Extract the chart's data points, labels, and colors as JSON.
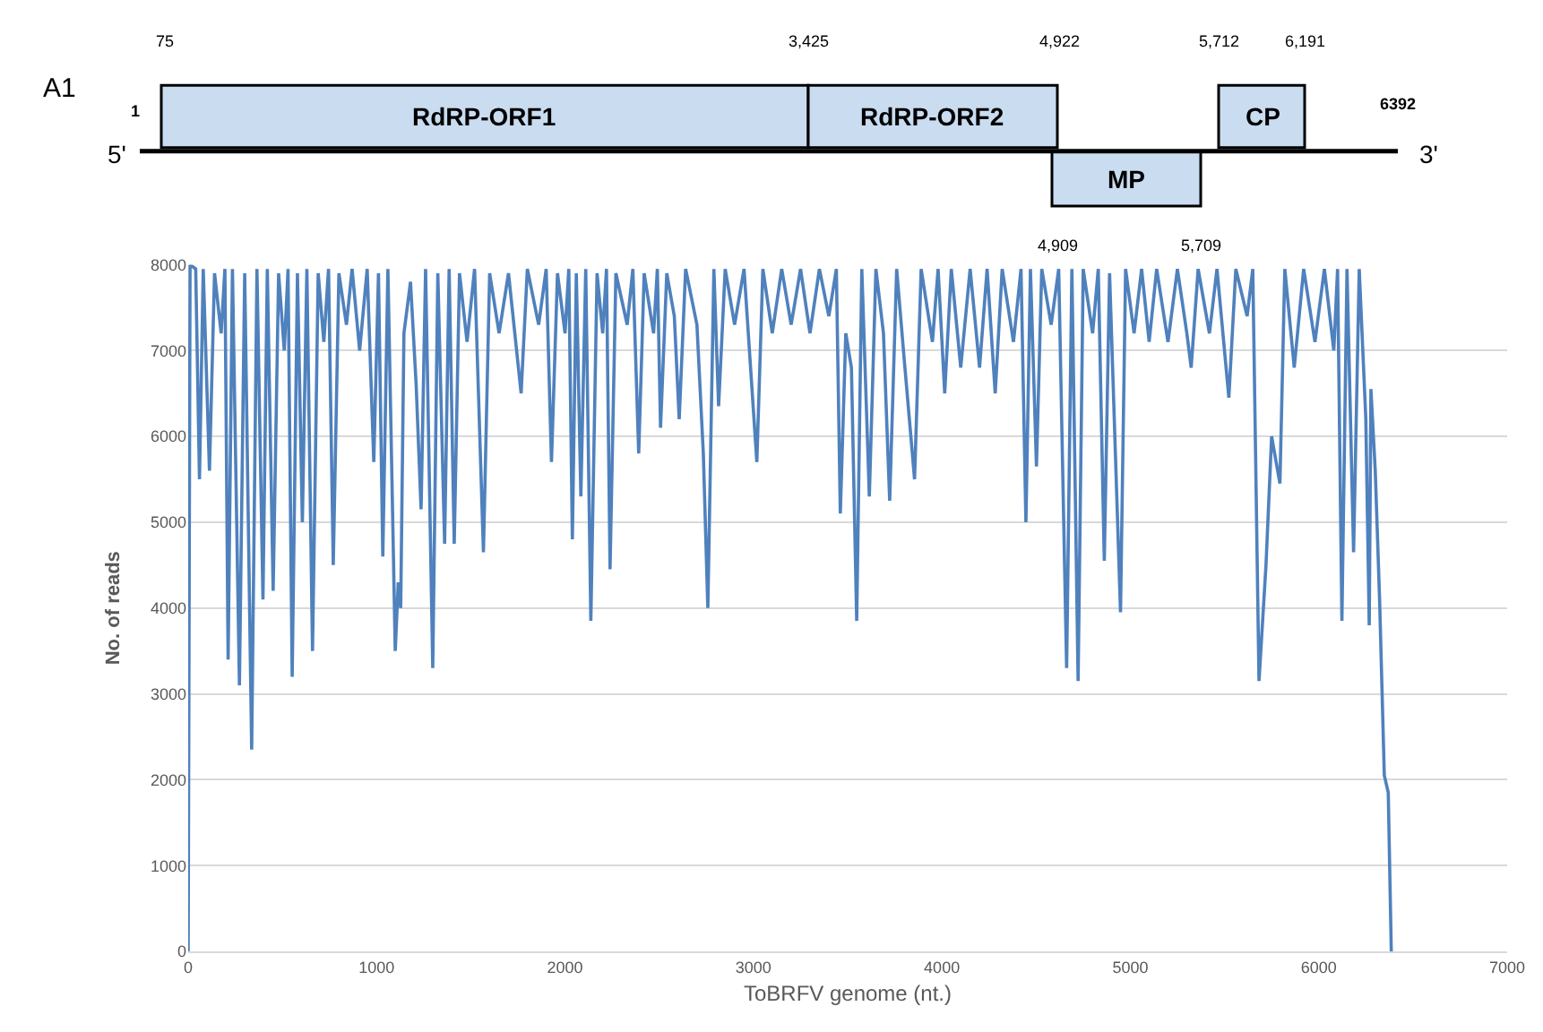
{
  "chart_data": [
    {
      "type": "other",
      "annotations": [
        "A1",
        "5'",
        "3'",
        "1",
        "6392",
        "75",
        "3,425",
        "4,922",
        "5,712",
        "6,191",
        "4,909",
        "5,709",
        "RdRP-ORF1",
        "RdRP-ORF2",
        "CP",
        "MP"
      ]
    },
    {
      "type": "line",
      "xlabel": "ToBRFV genome (nt.)",
      "ylabel": "No. of reads",
      "xlim": [
        0,
        7000
      ],
      "xticks": [
        0,
        1000,
        2000,
        3000,
        4000,
        5000,
        6000,
        7000
      ],
      "ylim": [
        0,
        8000
      ],
      "yticks": [
        0,
        1000,
        2000,
        3000,
        4000,
        5000,
        6000,
        7000,
        8000
      ],
      "grid": "y",
      "marker": "none",
      "line_style": "solid",
      "series": [
        {
          "color": "#4f81bd",
          "x": [
            0,
            10,
            40,
            60,
            80,
            113,
            140,
            175,
            195,
            212,
            235,
            272,
            300,
            337,
            365,
            397,
            420,
            451,
            480,
            510,
            530,
            552,
            580,
            606,
            630,
            660,
            690,
            720,
            745,
            770,
            800,
            840,
            870,
            910,
            950,
            985,
            1010,
            1033,
            1060,
            1099,
            1115,
            1128,
            1145,
            1180,
            1210,
            1236,
            1260,
            1298,
            1325,
            1361,
            1385,
            1412,
            1440,
            1480,
            1520,
            1567,
            1600,
            1650,
            1700,
            1767,
            1800,
            1860,
            1900,
            1928,
            1960,
            2000,
            2020,
            2039,
            2060,
            2084,
            2110,
            2137,
            2170,
            2200,
            2220,
            2239,
            2270,
            2330,
            2360,
            2391,
            2420,
            2470,
            2490,
            2507,
            2540,
            2580,
            2606,
            2640,
            2700,
            2734,
            2758,
            2790,
            2815,
            2850,
            2900,
            2950,
            3018,
            3050,
            3100,
            3150,
            3200,
            3250,
            3300,
            3350,
            3400,
            3440,
            3461,
            3490,
            3520,
            3548,
            3575,
            3615,
            3650,
            3690,
            3723,
            3760,
            3800,
            3855,
            3890,
            3950,
            3980,
            4015,
            4050,
            4100,
            4150,
            4200,
            4240,
            4283,
            4320,
            4380,
            4420,
            4446,
            4470,
            4502,
            4530,
            4580,
            4620,
            4662,
            4690,
            4723,
            4750,
            4800,
            4830,
            4862,
            4890,
            4948,
            4975,
            5020,
            5060,
            5100,
            5140,
            5200,
            5250,
            5300,
            5323,
            5360,
            5420,
            5460,
            5523,
            5560,
            5620,
            5650,
            5683,
            5720,
            5750,
            5794,
            5820,
            5870,
            5920,
            5980,
            6030,
            6080,
            6100,
            6123,
            6150,
            6185,
            6215,
            6250,
            6268,
            6277,
            6300,
            6323,
            6348,
            6369,
            6385
          ],
          "values": [
            0,
            8000,
            7950,
            5500,
            7950,
            5600,
            7900,
            7200,
            7950,
            3400,
            7950,
            3100,
            7900,
            2350,
            7950,
            4100,
            7950,
            4200,
            7900,
            7000,
            7950,
            3200,
            7900,
            5000,
            7950,
            3500,
            7900,
            7100,
            7950,
            4500,
            7900,
            7300,
            7950,
            7000,
            7950,
            5700,
            7900,
            4600,
            7950,
            3500,
            4300,
            4000,
            7200,
            7800,
            6600,
            5150,
            7950,
            3300,
            7900,
            4750,
            7950,
            4750,
            7900,
            7100,
            7950,
            4650,
            7900,
            7200,
            7900,
            6500,
            7950,
            7300,
            7950,
            5700,
            7900,
            7200,
            7950,
            4800,
            7900,
            5300,
            7950,
            3850,
            7900,
            7200,
            7950,
            4450,
            7900,
            7300,
            7950,
            5800,
            7900,
            7200,
            7950,
            6100,
            7900,
            7400,
            6200,
            7950,
            7300,
            5800,
            4000,
            7950,
            6350,
            7950,
            7300,
            7950,
            5700,
            7950,
            7200,
            7950,
            7300,
            7950,
            7200,
            7950,
            7400,
            7950,
            5100,
            7200,
            6800,
            3850,
            7950,
            5300,
            7950,
            7200,
            5250,
            7950,
            6900,
            5500,
            7950,
            7100,
            7950,
            6500,
            7950,
            6800,
            7950,
            6800,
            7950,
            6500,
            7950,
            7100,
            7950,
            5000,
            7950,
            5650,
            7950,
            7300,
            7950,
            3300,
            7950,
            3150,
            7950,
            7200,
            7950,
            4550,
            7900,
            3950,
            7950,
            7200,
            7950,
            7100,
            7950,
            7100,
            7950,
            7200,
            6800,
            7950,
            7200,
            7950,
            6450,
            7950,
            7400,
            7950,
            3150,
            4500,
            6000,
            5450,
            7950,
            6800,
            7950,
            7100,
            7950,
            7000,
            7950,
            3850,
            7950,
            4650,
            7950,
            6200,
            3800,
            6550,
            5600,
            4100,
            2050,
            1850,
            0
          ]
        }
      ]
    }
  ]
}
